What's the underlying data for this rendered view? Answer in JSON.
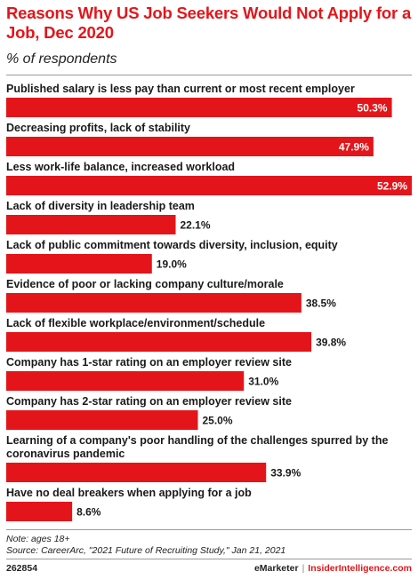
{
  "header": {
    "title": "Reasons Why US Job Seekers Would Not Apply for a Job, Dec 2020",
    "subtitle": "% of respondents"
  },
  "chart_data": {
    "type": "bar",
    "orientation": "horizontal",
    "categories": [
      [
        "Published salary is less pay than current or most recent employer"
      ],
      [
        "Decreasing profits, lack of stability"
      ],
      [
        "Less work-life balance, increased workload"
      ],
      [
        "Lack of diversity in leadership team"
      ],
      [
        "Lack of public commitment towards diversity, inclusion, equity"
      ],
      [
        "Evidence of poor or lacking company culture/morale"
      ],
      [
        "Lack of flexible workplace/environment/schedule"
      ],
      [
        "Company has 1-star rating on an employer review site"
      ],
      [
        "Company has 2-star rating on an employer review site"
      ],
      [
        "Learning of a company's poor handling of the challenges spurred by the",
        "coronavirus pandemic"
      ],
      [
        "Have no deal breakers when applying for a job"
      ]
    ],
    "values": [
      50.3,
      47.9,
      52.9,
      22.1,
      19.0,
      38.5,
      39.8,
      31.0,
      25.0,
      33.9,
      8.6
    ],
    "value_labels": [
      "50.3%",
      "47.9%",
      "52.9%",
      "22.1%",
      "19.0%",
      "38.5%",
      "39.8%",
      "31.0%",
      "25.0%",
      "33.9%",
      "8.6%"
    ],
    "xlim": [
      0,
      52.9
    ],
    "bar_color": "#e3151a"
  },
  "notes": {
    "note": "Note: ages 18+",
    "source": "Source: CareerArc, \"2021 Future of Recruiting Study,\" Jan 21, 2021"
  },
  "footer": {
    "id": "262854",
    "brand": "eMarketer",
    "separator": "|",
    "site": "InsiderIntelligence.com"
  }
}
